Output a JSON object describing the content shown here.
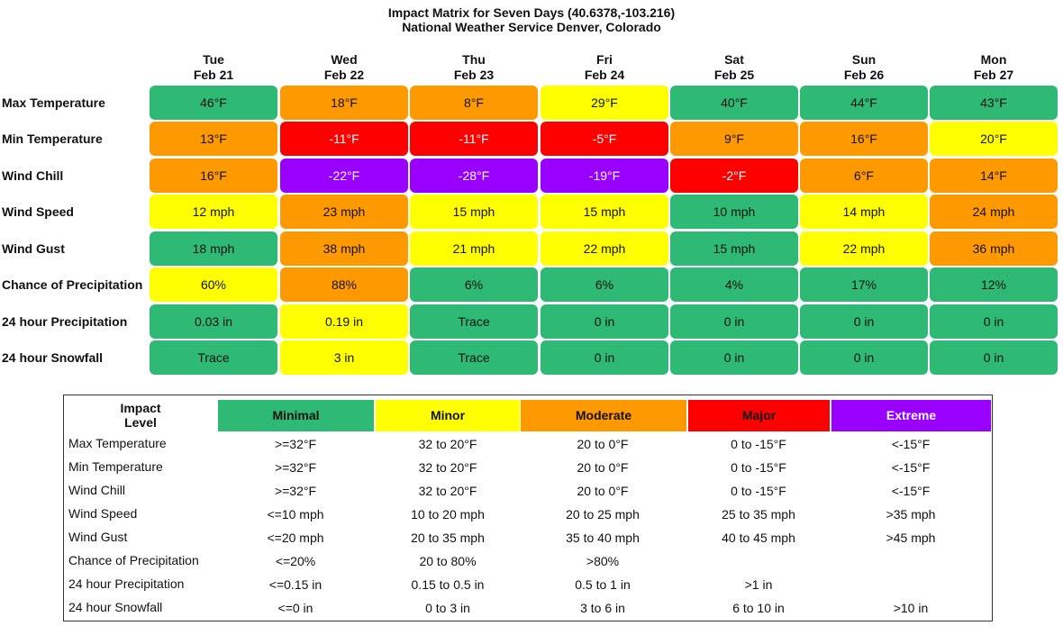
{
  "title": {
    "line1": "Impact Matrix for Seven Days (40.6378,-103.216)",
    "line2": "National Weather Service Denver, Colorado"
  },
  "days": [
    {
      "dow": "Tue",
      "date": "Feb 21"
    },
    {
      "dow": "Wed",
      "date": "Feb 22"
    },
    {
      "dow": "Thu",
      "date": "Feb 23"
    },
    {
      "dow": "Fri",
      "date": "Feb 24"
    },
    {
      "dow": "Sat",
      "date": "Feb 25"
    },
    {
      "dow": "Sun",
      "date": "Feb 26"
    },
    {
      "dow": "Mon",
      "date": "Feb 27"
    }
  ],
  "colors": {
    "minimal": "#2eba74",
    "minor": "#ffff00",
    "moderate": "#ff9900",
    "major": "#ff0000",
    "extreme": "#9900ff"
  },
  "matrix": [
    {
      "label": "Max Temperature",
      "cells": [
        {
          "value": "46°F",
          "level": "minimal"
        },
        {
          "value": "18°F",
          "level": "moderate"
        },
        {
          "value": "8°F",
          "level": "moderate"
        },
        {
          "value": "29°F",
          "level": "minor"
        },
        {
          "value": "40°F",
          "level": "minimal"
        },
        {
          "value": "44°F",
          "level": "minimal"
        },
        {
          "value": "43°F",
          "level": "minimal"
        }
      ]
    },
    {
      "label": "Min Temperature",
      "cells": [
        {
          "value": "13°F",
          "level": "moderate"
        },
        {
          "value": "-11°F",
          "level": "major"
        },
        {
          "value": "-11°F",
          "level": "major"
        },
        {
          "value": "-5°F",
          "level": "major"
        },
        {
          "value": "9°F",
          "level": "moderate"
        },
        {
          "value": "16°F",
          "level": "moderate"
        },
        {
          "value": "20°F",
          "level": "minor"
        }
      ]
    },
    {
      "label": "Wind Chill",
      "cells": [
        {
          "value": "16°F",
          "level": "moderate"
        },
        {
          "value": "-22°F",
          "level": "extreme"
        },
        {
          "value": "-28°F",
          "level": "extreme"
        },
        {
          "value": "-19°F",
          "level": "extreme"
        },
        {
          "value": "-2°F",
          "level": "major"
        },
        {
          "value": "6°F",
          "level": "moderate"
        },
        {
          "value": "14°F",
          "level": "moderate"
        }
      ]
    },
    {
      "label": "Wind Speed",
      "cells": [
        {
          "value": "12 mph",
          "level": "minor"
        },
        {
          "value": "23 mph",
          "level": "moderate"
        },
        {
          "value": "15 mph",
          "level": "minor"
        },
        {
          "value": "15 mph",
          "level": "minor"
        },
        {
          "value": "10 mph",
          "level": "minimal"
        },
        {
          "value": "14 mph",
          "level": "minor"
        },
        {
          "value": "24 mph",
          "level": "moderate"
        }
      ]
    },
    {
      "label": "Wind Gust",
      "cells": [
        {
          "value": "18 mph",
          "level": "minimal"
        },
        {
          "value": "38 mph",
          "level": "moderate"
        },
        {
          "value": "21 mph",
          "level": "minor"
        },
        {
          "value": "22 mph",
          "level": "minor"
        },
        {
          "value": "15 mph",
          "level": "minimal"
        },
        {
          "value": "22 mph",
          "level": "minor"
        },
        {
          "value": "36 mph",
          "level": "moderate"
        }
      ]
    },
    {
      "label": "Chance of Precipitation",
      "cells": [
        {
          "value": "60%",
          "level": "minor"
        },
        {
          "value": "88%",
          "level": "moderate"
        },
        {
          "value": "6%",
          "level": "minimal"
        },
        {
          "value": "6%",
          "level": "minimal"
        },
        {
          "value": "4%",
          "level": "minimal"
        },
        {
          "value": "17%",
          "level": "minimal"
        },
        {
          "value": "12%",
          "level": "minimal"
        }
      ]
    },
    {
      "label": "24 hour Precipitation",
      "cells": [
        {
          "value": "0.03 in",
          "level": "minimal"
        },
        {
          "value": "0.19 in",
          "level": "minor"
        },
        {
          "value": "Trace",
          "level": "minimal"
        },
        {
          "value": "0 in",
          "level": "minimal"
        },
        {
          "value": "0 in",
          "level": "minimal"
        },
        {
          "value": "0 in",
          "level": "minimal"
        },
        {
          "value": "0 in",
          "level": "minimal"
        }
      ]
    },
    {
      "label": "24 hour Snowfall",
      "cells": [
        {
          "value": "Trace",
          "level": "minimal"
        },
        {
          "value": "3 in",
          "level": "minor"
        },
        {
          "value": "Trace",
          "level": "minimal"
        },
        {
          "value": "0 in",
          "level": "minimal"
        },
        {
          "value": "0 in",
          "level": "minimal"
        },
        {
          "value": "0 in",
          "level": "minimal"
        },
        {
          "value": "0 in",
          "level": "minimal"
        }
      ]
    }
  ],
  "legend": {
    "title_line1": "Impact",
    "title_line2": "Level",
    "levels": [
      {
        "key": "minimal",
        "label": "Minimal"
      },
      {
        "key": "minor",
        "label": "Minor"
      },
      {
        "key": "moderate",
        "label": "Moderate"
      },
      {
        "key": "major",
        "label": "Major"
      },
      {
        "key": "extreme",
        "label": "Extreme"
      }
    ],
    "rows": [
      {
        "label": "Max Temperature",
        "values": [
          ">=32°F",
          "32 to 20°F",
          "20 to 0°F",
          "0 to -15°F",
          "<-15°F"
        ]
      },
      {
        "label": "Min Temperature",
        "values": [
          ">=32°F",
          "32 to 20°F",
          "20 to 0°F",
          "0 to -15°F",
          "<-15°F"
        ]
      },
      {
        "label": "Wind Chill",
        "values": [
          ">=32°F",
          "32 to 20°F",
          "20 to 0°F",
          "0 to -15°F",
          "<-15°F"
        ]
      },
      {
        "label": "Wind Speed",
        "values": [
          "<=10 mph",
          "10 to 20 mph",
          "20 to 25 mph",
          "25 to 35 mph",
          ">35 mph"
        ]
      },
      {
        "label": "Wind Gust",
        "values": [
          "<=20 mph",
          "20 to 35 mph",
          "35 to 40 mph",
          "40 to 45 mph",
          ">45 mph"
        ]
      },
      {
        "label": "Chance of Precipitation",
        "values": [
          "<=20%",
          "20 to 80%",
          ">80%",
          "",
          ""
        ]
      },
      {
        "label": "24 hour Precipitation",
        "values": [
          "<=0.15 in",
          "0.15 to 0.5 in",
          "0.5 to 1 in",
          ">1 in",
          ""
        ]
      },
      {
        "label": "24 hour Snowfall",
        "values": [
          "<=0 in",
          "0 to 3 in",
          "3 to 6 in",
          "6 to 10 in",
          ">10 in"
        ]
      }
    ]
  }
}
